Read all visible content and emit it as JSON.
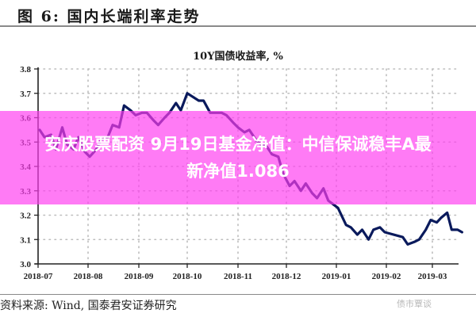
{
  "figure": {
    "title": "图 6:  国内长端利率走势",
    "chart_title": "10Y国债收益率, %",
    "source": "资料来源:  Wind, 国泰君安证券研究",
    "watermark": "债市覃谈"
  },
  "overlay": {
    "line1": "安庆股票配资 9月19日基金净值：中信保诚稳丰A最",
    "line2": "新净值1.086",
    "color": "#ff3cf0"
  },
  "colors": {
    "line": "#0a1a5c",
    "grid": "#bdbdbd",
    "axis": "#222222"
  },
  "chart_data": {
    "type": "line",
    "title": "10Y国债收益率, %",
    "xlabel": "",
    "ylabel": "%",
    "ylim": [
      3.0,
      3.8
    ],
    "yticks": [
      "3.0",
      "3.1",
      "3.2",
      "3.3",
      "3.4",
      "3.5",
      "3.6",
      "3.7",
      "3.8"
    ],
    "xticks": [
      "2018-07",
      "2018-08",
      "2018-09",
      "2018-10",
      "2018-11",
      "2018-12",
      "2019-01",
      "2019-02",
      "2019-03"
    ],
    "grid": true,
    "legend": "none",
    "series": [
      {
        "name": "10Y国债收益率",
        "x": [
          "2018-07-02",
          "2018-07-05",
          "2018-07-09",
          "2018-07-12",
          "2018-07-16",
          "2018-07-19",
          "2018-07-23",
          "2018-07-26",
          "2018-07-30",
          "2018-08-02",
          "2018-08-06",
          "2018-08-09",
          "2018-08-13",
          "2018-08-16",
          "2018-08-20",
          "2018-08-23",
          "2018-08-27",
          "2018-08-30",
          "2018-09-03",
          "2018-09-06",
          "2018-09-10",
          "2018-09-13",
          "2018-09-17",
          "2018-09-20",
          "2018-09-24",
          "2018-09-27",
          "2018-10-01",
          "2018-10-08",
          "2018-10-11",
          "2018-10-15",
          "2018-10-18",
          "2018-10-22",
          "2018-10-25",
          "2018-10-29",
          "2018-11-01",
          "2018-11-05",
          "2018-11-08",
          "2018-11-12",
          "2018-11-15",
          "2018-11-19",
          "2018-11-22",
          "2018-11-26",
          "2018-11-29",
          "2018-12-03",
          "2018-12-06",
          "2018-12-10",
          "2018-12-13",
          "2018-12-17",
          "2018-12-20",
          "2018-12-24",
          "2018-12-27",
          "2019-01-02",
          "2019-01-07",
          "2019-01-10",
          "2019-01-14",
          "2019-01-17",
          "2019-01-21",
          "2019-01-24",
          "2019-01-28",
          "2019-01-31",
          "2019-02-11",
          "2019-02-14",
          "2019-02-18",
          "2019-02-21",
          "2019-02-25",
          "2019-02-28",
          "2019-03-04",
          "2019-03-07",
          "2019-03-11",
          "2019-03-14",
          "2019-03-18",
          "2019-03-21"
        ],
        "values": [
          3.55,
          3.52,
          3.53,
          3.47,
          3.56,
          3.49,
          3.47,
          3.52,
          3.46,
          3.44,
          3.47,
          3.51,
          3.52,
          3.57,
          3.56,
          3.65,
          3.63,
          3.61,
          3.62,
          3.62,
          3.59,
          3.57,
          3.6,
          3.62,
          3.66,
          3.63,
          3.7,
          3.67,
          3.67,
          3.62,
          3.62,
          3.62,
          3.61,
          3.58,
          3.56,
          3.54,
          3.55,
          3.51,
          3.49,
          3.48,
          3.45,
          3.44,
          3.37,
          3.32,
          3.34,
          3.3,
          3.33,
          3.29,
          3.27,
          3.31,
          3.26,
          3.23,
          3.16,
          3.15,
          3.12,
          3.14,
          3.1,
          3.14,
          3.15,
          3.13,
          3.11,
          3.08,
          3.09,
          3.1,
          3.14,
          3.18,
          3.17,
          3.19,
          3.21,
          3.14,
          3.14,
          3.13
        ]
      }
    ]
  }
}
